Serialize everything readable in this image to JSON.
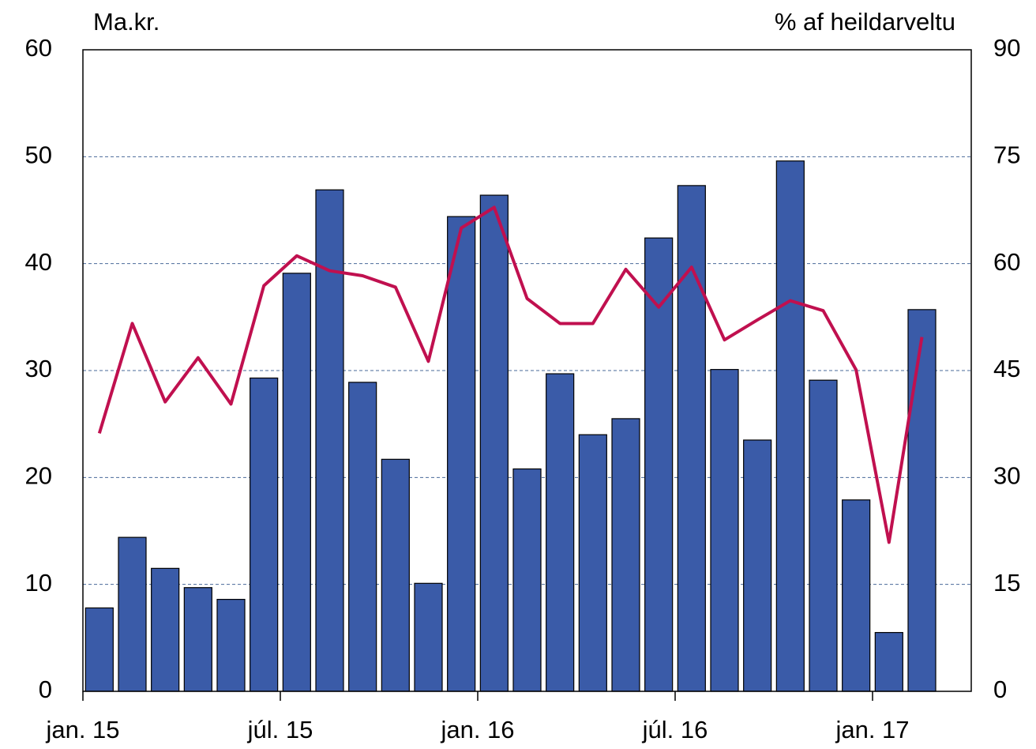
{
  "chart_data": {
    "type": "bar_line",
    "y_label": "Ma.kr.",
    "y2_label": "% af heildarveltu",
    "categories": [
      "jan. 15",
      null,
      null,
      null,
      null,
      null,
      "júl. 15",
      null,
      null,
      null,
      null,
      null,
      "jan. 16",
      null,
      null,
      null,
      null,
      null,
      "júl. 16",
      null,
      null,
      null,
      null,
      null,
      "jan. 17",
      null
    ],
    "series": [
      {
        "type": "bar",
        "color": "#3a5ba8",
        "values": [
          7.8,
          14.4,
          11.5,
          9.7,
          8.6,
          29.3,
          39.1,
          46.9,
          28.9,
          21.7,
          10.1,
          44.4,
          46.4,
          20.8,
          29.7,
          24.0,
          25.5,
          42.4,
          47.3,
          30.1,
          23.5,
          49.6,
          29.1,
          17.9,
          5.5,
          35.7
        ]
      },
      {
        "type": "line",
        "axis": "y2",
        "color": "#c0104f",
        "values": [
          36.2,
          51.6,
          40.6,
          46.8,
          40.3,
          56.9,
          61.1,
          59.0,
          58.3,
          56.7,
          46.3,
          65.0,
          67.9,
          55.1,
          51.6,
          51.6,
          59.2,
          53.9,
          59.5,
          49.3,
          52.1,
          54.8,
          53.4,
          45.1,
          20.9,
          49.7
        ]
      }
    ],
    "ylim": [
      0,
      60
    ],
    "yticks": [
      0,
      10,
      20,
      30,
      40,
      50,
      60
    ],
    "y2lim": [
      0,
      90
    ],
    "y2ticks": [
      0,
      15,
      30,
      45,
      60,
      75,
      90
    ],
    "grid": true
  }
}
